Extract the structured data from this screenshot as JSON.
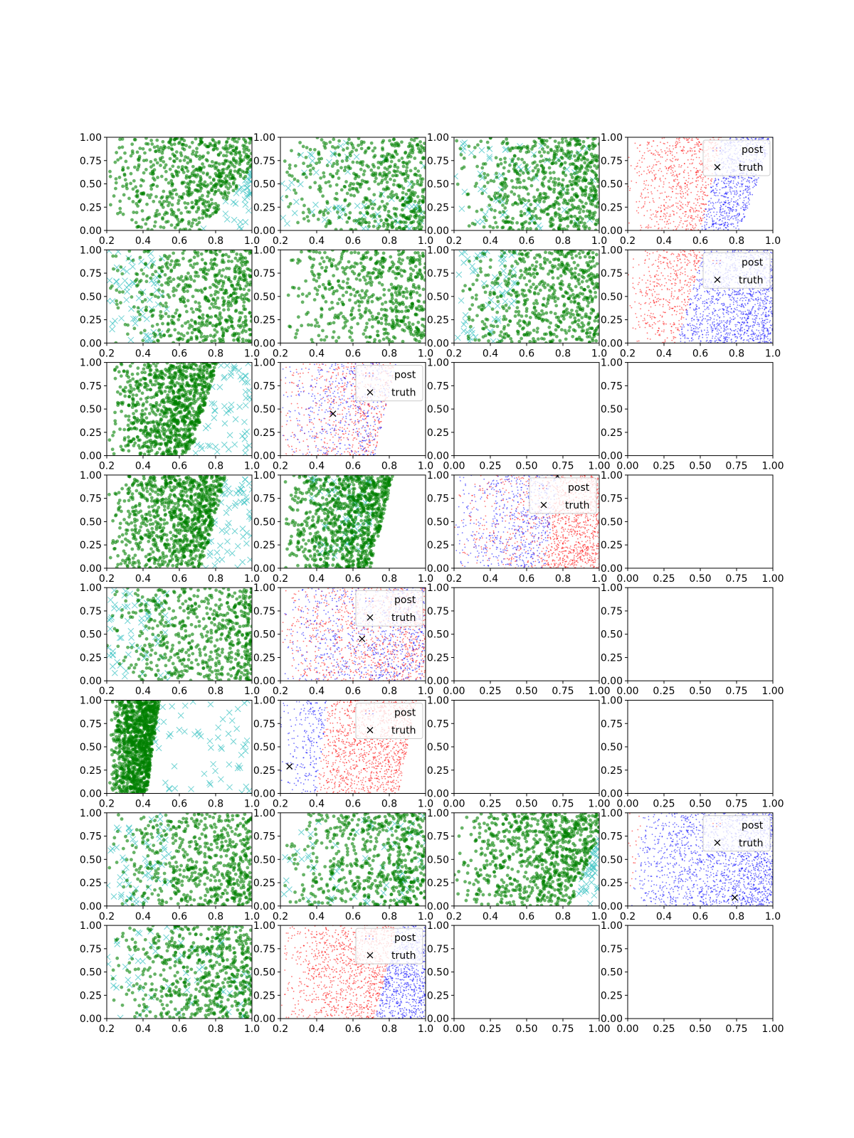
{
  "figure": {
    "rows": 8,
    "cols": 4,
    "background": "#ffffff"
  },
  "colors": {
    "green_points": "#008000",
    "cyan_truth": "#40c4c4",
    "post_red": "#ff0000",
    "post_blue": "#0000ff",
    "truth_marker": "#000000"
  },
  "legend": {
    "post_label": "post",
    "truth_label": "truth"
  },
  "ticks": {
    "x_range_02": [
      "0.2",
      "0.4",
      "0.6",
      "0.8",
      "1.0"
    ],
    "x_range_0": [
      "0.00",
      "0.25",
      "0.50",
      "0.75",
      "1.00"
    ],
    "y_range_0": [
      "0.00",
      "0.25",
      "0.50",
      "0.75",
      "1.00"
    ]
  },
  "chart_data": [
    {
      "row": 0,
      "col": 0,
      "type": "scatter",
      "kind": "samples",
      "xlim": [
        0.2,
        1.0
      ],
      "ylim": [
        0,
        1
      ],
      "xticks": [
        "0.2",
        "0.4",
        "0.6",
        "0.8",
        "1.0"
      ],
      "yticks": [
        "0.00",
        "0.25",
        "0.50",
        "0.75",
        "1.00"
      ],
      "boundary": {
        "x_at_y0": 0.72,
        "x_at_y1": 1.15
      },
      "truth_side": "right",
      "density": 0.6
    },
    {
      "row": 0,
      "col": 1,
      "type": "scatter",
      "kind": "samples",
      "xlim": [
        0.2,
        1.0
      ],
      "ylim": [
        0,
        1
      ],
      "xticks": [
        "0.2",
        "0.4",
        "0.6",
        "0.8",
        "1.0"
      ],
      "yticks": [
        "0.00",
        "0.25",
        "0.50",
        "0.75",
        "1.00"
      ],
      "boundary": {
        "x_at_y0": 1.5,
        "x_at_y1": 1.5
      },
      "truth_side": "mixed",
      "density": 0.5
    },
    {
      "row": 0,
      "col": 2,
      "type": "scatter",
      "kind": "samples",
      "xlim": [
        0.2,
        1.0
      ],
      "ylim": [
        0,
        1
      ],
      "xticks": [
        "0.2",
        "0.4",
        "0.6",
        "0.8",
        "1.0"
      ],
      "yticks": [
        "0.00",
        "0.25",
        "0.50",
        "0.75",
        "1.00"
      ],
      "boundary": {
        "x_at_y0": 1.0,
        "x_at_y1": 1.4
      },
      "truth_side": "mixed",
      "density": 0.6
    },
    {
      "row": 0,
      "col": 3,
      "type": "scatter",
      "kind": "posterior",
      "xlim": [
        0.2,
        1.0
      ],
      "ylim": [
        0,
        1
      ],
      "xticks": [
        "0.2",
        "0.4",
        "0.6",
        "0.8",
        "1.0"
      ],
      "yticks": [
        "0.00",
        "0.25",
        "0.50",
        "0.75",
        "1.00"
      ],
      "boundary": {
        "x_at_y0": 0.6,
        "x_at_y1": 0.72
      },
      "red_side": "left",
      "blue_cut": {
        "x_at_y0": 0.82,
        "x_at_y1": 1.0
      },
      "truth": null,
      "legend": "upper right"
    },
    {
      "row": 1,
      "col": 0,
      "type": "scatter",
      "kind": "samples",
      "xlim": [
        0.2,
        1.0
      ],
      "ylim": [
        0,
        1
      ],
      "xticks": [
        "0.2",
        "0.4",
        "0.6",
        "0.8",
        "1.0"
      ],
      "yticks": [
        "0.00",
        "0.25",
        "0.50",
        "0.75",
        "1.00"
      ],
      "boundary": {
        "x_at_y0": 1.5,
        "x_at_y1": 1.5
      },
      "truth_side": "left",
      "density": 0.55
    },
    {
      "row": 1,
      "col": 1,
      "type": "scatter",
      "kind": "samples",
      "xlim": [
        0.2,
        1.0
      ],
      "ylim": [
        0,
        1
      ],
      "xticks": [
        "0.2",
        "0.4",
        "0.6",
        "0.8",
        "1.0"
      ],
      "yticks": [
        "0.00",
        "0.25",
        "0.50",
        "0.75",
        "1.00"
      ],
      "boundary": {
        "x_at_y0": 1.5,
        "x_at_y1": 1.5
      },
      "truth_side": "right",
      "density": 0.5
    },
    {
      "row": 1,
      "col": 2,
      "type": "scatter",
      "kind": "samples",
      "xlim": [
        0.2,
        1.0
      ],
      "ylim": [
        0,
        1
      ],
      "xticks": [
        "0.2",
        "0.4",
        "0.6",
        "0.8",
        "1.0"
      ],
      "yticks": [
        "0.00",
        "0.25",
        "0.50",
        "0.75",
        "1.00"
      ],
      "boundary": {
        "x_at_y0": 1.5,
        "x_at_y1": 1.5
      },
      "truth_side": "left",
      "density": 0.55
    },
    {
      "row": 1,
      "col": 3,
      "type": "scatter",
      "kind": "posterior",
      "xlim": [
        0.2,
        1.0
      ],
      "ylim": [
        0,
        1
      ],
      "xticks": [
        "0.2",
        "0.4",
        "0.6",
        "0.8",
        "1.0"
      ],
      "yticks": [
        "0.00",
        "0.25",
        "0.50",
        "0.75",
        "1.00"
      ],
      "boundary": {
        "x_at_y0": 0.47,
        "x_at_y1": 0.62
      },
      "red_side": "left",
      "blue_cut": null,
      "truth": null,
      "legend": "upper right"
    },
    {
      "row": 2,
      "col": 0,
      "type": "scatter",
      "kind": "samples",
      "xlim": [
        0.2,
        1.0
      ],
      "ylim": [
        0,
        1
      ],
      "xticks": [
        "0.2",
        "0.4",
        "0.6",
        "0.8",
        "1.0"
      ],
      "yticks": [
        "0.00",
        "0.25",
        "0.50",
        "0.75",
        "1.00"
      ],
      "boundary": {
        "x_at_y0": 0.66,
        "x_at_y1": 0.81
      },
      "truth_side": "right",
      "density": 0.85
    },
    {
      "row": 2,
      "col": 1,
      "type": "scatter",
      "kind": "posterior",
      "xlim": [
        0.2,
        1.0
      ],
      "ylim": [
        0,
        1
      ],
      "xticks": [
        "0.2",
        "0.4",
        "0.6",
        "0.8",
        "1.0"
      ],
      "yticks": [
        "0.00",
        "0.25",
        "0.50",
        "0.75",
        "1.00"
      ],
      "boundary": {
        "x_at_y0": 0.72,
        "x_at_y1": 0.84
      },
      "red_side": "mixed",
      "blue_cut": null,
      "truth": [
        0.49,
        0.45
      ],
      "legend": "upper right"
    },
    {
      "row": 2,
      "col": 2,
      "type": "empty",
      "xlim": [
        0,
        1
      ],
      "ylim": [
        0,
        1
      ],
      "xticks": [
        "0.00",
        "0.25",
        "0.50",
        "0.75",
        "1.00"
      ],
      "yticks": [
        "0.00",
        "0.25",
        "0.50",
        "0.75",
        "1.00"
      ]
    },
    {
      "row": 2,
      "col": 3,
      "type": "empty",
      "xlim": [
        0,
        1
      ],
      "ylim": [
        0,
        1
      ],
      "xticks": [
        "0.00",
        "0.25",
        "0.50",
        "0.75",
        "1.00"
      ],
      "yticks": [
        "0.00",
        "0.25",
        "0.50",
        "0.75",
        "1.00"
      ]
    },
    {
      "row": 3,
      "col": 0,
      "type": "scatter",
      "kind": "samples",
      "xlim": [
        0.2,
        1.0
      ],
      "ylim": [
        0,
        1
      ],
      "xticks": [
        "0.2",
        "0.4",
        "0.6",
        "0.8",
        "1.0"
      ],
      "yticks": [
        "0.00",
        "0.25",
        "0.50",
        "0.75",
        "1.00"
      ],
      "boundary": {
        "x_at_y0": 0.72,
        "x_at_y1": 0.86
      },
      "truth_side": "right",
      "density": 0.85
    },
    {
      "row": 3,
      "col": 1,
      "type": "scatter",
      "kind": "samples",
      "xlim": [
        0.2,
        1.0
      ],
      "ylim": [
        0,
        1
      ],
      "xticks": [
        "0.2",
        "0.4",
        "0.6",
        "0.8",
        "1.0"
      ],
      "yticks": [
        "0.00",
        "0.25",
        "0.50",
        "0.75",
        "1.00"
      ],
      "boundary": {
        "x_at_y0": 0.7,
        "x_at_y1": 0.82
      },
      "truth_side": "inside",
      "density": 0.85
    },
    {
      "row": 3,
      "col": 2,
      "type": "scatter",
      "kind": "posterior",
      "xlim": [
        0.2,
        1.0
      ],
      "ylim": [
        0,
        1
      ],
      "xticks": [
        "0.2",
        "0.4",
        "0.6",
        "0.8",
        "1.0"
      ],
      "yticks": [
        "0.00",
        "0.25",
        "0.50",
        "0.75",
        "1.00"
      ],
      "boundary": {
        "x_at_y0": 0.7,
        "x_at_y1": 0.78
      },
      "red_side": "right",
      "blue_cut": null,
      "truth": [
        0.77,
        0.99
      ],
      "legend": "upper right"
    },
    {
      "row": 3,
      "col": 3,
      "type": "empty",
      "xlim": [
        0,
        1
      ],
      "ylim": [
        0,
        1
      ],
      "xticks": [
        "0.00",
        "0.25",
        "0.50",
        "0.75",
        "1.00"
      ],
      "yticks": [
        "0.00",
        "0.25",
        "0.50",
        "0.75",
        "1.00"
      ]
    },
    {
      "row": 4,
      "col": 0,
      "type": "scatter",
      "kind": "samples",
      "xlim": [
        0.2,
        1.0
      ],
      "ylim": [
        0,
        1
      ],
      "xticks": [
        "0.2",
        "0.4",
        "0.6",
        "0.8",
        "1.0"
      ],
      "yticks": [
        "0.00",
        "0.25",
        "0.50",
        "0.75",
        "1.00"
      ],
      "boundary": {
        "x_at_y0": 1.5,
        "x_at_y1": 1.5
      },
      "truth_side": "left",
      "density": 0.55
    },
    {
      "row": 4,
      "col": 1,
      "type": "scatter",
      "kind": "posterior",
      "xlim": [
        0.2,
        1.0
      ],
      "ylim": [
        0,
        1
      ],
      "xticks": [
        "0.2",
        "0.4",
        "0.6",
        "0.8",
        "1.0"
      ],
      "yticks": [
        "0.00",
        "0.25",
        "0.50",
        "0.75",
        "1.00"
      ],
      "boundary": {
        "x_at_y0": 1.5,
        "x_at_y1": 1.5
      },
      "red_side": "mixed",
      "blue_cut": null,
      "truth": [
        0.65,
        0.45
      ],
      "legend": "upper right"
    },
    {
      "row": 4,
      "col": 2,
      "type": "empty",
      "xlim": [
        0,
        1
      ],
      "ylim": [
        0,
        1
      ],
      "xticks": [
        "0.00",
        "0.25",
        "0.50",
        "0.75",
        "1.00"
      ],
      "yticks": [
        "0.00",
        "0.25",
        "0.50",
        "0.75",
        "1.00"
      ]
    },
    {
      "row": 4,
      "col": 3,
      "type": "empty",
      "xlim": [
        0,
        1
      ],
      "ylim": [
        0,
        1
      ],
      "xticks": [
        "0.00",
        "0.25",
        "0.50",
        "0.75",
        "1.00"
      ],
      "yticks": [
        "0.00",
        "0.25",
        "0.50",
        "0.75",
        "1.00"
      ]
    },
    {
      "row": 5,
      "col": 0,
      "type": "scatter",
      "kind": "samples",
      "xlim": [
        0.2,
        1.0
      ],
      "ylim": [
        0,
        1
      ],
      "xticks": [
        "0.2",
        "0.4",
        "0.6",
        "0.8",
        "1.0"
      ],
      "yticks": [
        "0.00",
        "0.25",
        "0.50",
        "0.75",
        "1.00"
      ],
      "boundary": {
        "x_at_y0": 0.42,
        "x_at_y1": 0.49
      },
      "truth_side": "right",
      "density": 1.0
    },
    {
      "row": 5,
      "col": 1,
      "type": "scatter",
      "kind": "posterior",
      "xlim": [
        0.2,
        1.0
      ],
      "ylim": [
        0,
        1
      ],
      "xticks": [
        "0.2",
        "0.4",
        "0.6",
        "0.8",
        "1.0"
      ],
      "yticks": [
        "0.00",
        "0.25",
        "0.50",
        "0.75",
        "1.00"
      ],
      "boundary": {
        "x_at_y0": 0.85,
        "x_at_y1": 0.95
      },
      "red_side": "right",
      "blue_split": {
        "x_at_y0": 0.4,
        "x_at_y1": 0.46
      },
      "truth": [
        0.25,
        0.29
      ],
      "legend": "upper right"
    },
    {
      "row": 5,
      "col": 2,
      "type": "empty",
      "xlim": [
        0,
        1
      ],
      "ylim": [
        0,
        1
      ],
      "xticks": [
        "0.00",
        "0.25",
        "0.50",
        "0.75",
        "1.00"
      ],
      "yticks": [
        "0.00",
        "0.25",
        "0.50",
        "0.75",
        "1.00"
      ]
    },
    {
      "row": 5,
      "col": 3,
      "type": "empty",
      "xlim": [
        0,
        1
      ],
      "ylim": [
        0,
        1
      ],
      "xticks": [
        "0.00",
        "0.25",
        "0.50",
        "0.75",
        "1.00"
      ],
      "yticks": [
        "0.00",
        "0.25",
        "0.50",
        "0.75",
        "1.00"
      ]
    },
    {
      "row": 6,
      "col": 0,
      "type": "scatter",
      "kind": "samples",
      "xlim": [
        0.2,
        1.0
      ],
      "ylim": [
        0,
        1
      ],
      "xticks": [
        "0.2",
        "0.4",
        "0.6",
        "0.8",
        "1.0"
      ],
      "yticks": [
        "0.00",
        "0.25",
        "0.50",
        "0.75",
        "1.00"
      ],
      "boundary": {
        "x_at_y0": 1.5,
        "x_at_y1": 1.5
      },
      "truth_side": "left",
      "density": 0.55
    },
    {
      "row": 6,
      "col": 1,
      "type": "scatter",
      "kind": "samples",
      "xlim": [
        0.2,
        1.0
      ],
      "ylim": [
        0,
        1
      ],
      "xticks": [
        "0.2",
        "0.4",
        "0.6",
        "0.8",
        "1.0"
      ],
      "yticks": [
        "0.00",
        "0.25",
        "0.50",
        "0.75",
        "1.00"
      ],
      "boundary": {
        "x_at_y0": 1.5,
        "x_at_y1": 1.5
      },
      "truth_side": "mixed",
      "density": 0.55
    },
    {
      "row": 6,
      "col": 2,
      "type": "scatter",
      "kind": "samples",
      "xlim": [
        0.2,
        1.0
      ],
      "ylim": [
        0,
        1
      ],
      "xticks": [
        "0.2",
        "0.4",
        "0.6",
        "0.8",
        "1.0"
      ],
      "yticks": [
        "0.00",
        "0.25",
        "0.50",
        "0.75",
        "1.00"
      ],
      "boundary": {
        "x_at_y0": 0.84,
        "x_at_y1": 1.05
      },
      "truth_side": "right",
      "density": 0.75
    },
    {
      "row": 6,
      "col": 3,
      "type": "scatter",
      "kind": "posterior",
      "xlim": [
        0.2,
        1.0
      ],
      "ylim": [
        0,
        1
      ],
      "xticks": [
        "0.2",
        "0.4",
        "0.6",
        "0.8",
        "1.0"
      ],
      "yticks": [
        "0.00",
        "0.25",
        "0.50",
        "0.75",
        "1.00"
      ],
      "boundary": {
        "x_at_y0": 0.21,
        "x_at_y1": 0.28
      },
      "red_side": "left",
      "blue_cut": null,
      "truth": [
        0.79,
        0.09
      ],
      "legend": "upper right"
    },
    {
      "row": 7,
      "col": 0,
      "type": "scatter",
      "kind": "samples",
      "xlim": [
        0.2,
        1.0
      ],
      "ylim": [
        0,
        1
      ],
      "xticks": [
        "0.2",
        "0.4",
        "0.6",
        "0.8",
        "1.0"
      ],
      "yticks": [
        "0.00",
        "0.25",
        "0.50",
        "0.75",
        "1.00"
      ],
      "boundary": {
        "x_at_y0": 1.5,
        "x_at_y1": 1.5
      },
      "truth_side": "mixed",
      "density": 0.55
    },
    {
      "row": 7,
      "col": 1,
      "type": "scatter",
      "kind": "posterior",
      "xlim": [
        0.2,
        1.0
      ],
      "ylim": [
        0,
        1
      ],
      "xticks": [
        "0.2",
        "0.4",
        "0.6",
        "0.8",
        "1.0"
      ],
      "yticks": [
        "0.00",
        "0.25",
        "0.50",
        "0.75",
        "1.00"
      ],
      "boundary": {
        "x_at_y0": 0.72,
        "x_at_y1": 0.84
      },
      "red_side": "left",
      "blue_cut": null,
      "truth": null,
      "legend": "upper right"
    },
    {
      "row": 7,
      "col": 2,
      "type": "empty",
      "xlim": [
        0,
        1
      ],
      "ylim": [
        0,
        1
      ],
      "xticks": [
        "0.00",
        "0.25",
        "0.50",
        "0.75",
        "1.00"
      ],
      "yticks": [
        "0.00",
        "0.25",
        "0.50",
        "0.75",
        "1.00"
      ]
    },
    {
      "row": 7,
      "col": 3,
      "type": "empty",
      "xlim": [
        0,
        1
      ],
      "ylim": [
        0,
        1
      ],
      "xticks": [
        "0.00",
        "0.25",
        "0.50",
        "0.75",
        "1.00"
      ],
      "yticks": [
        "0.00",
        "0.25",
        "0.50",
        "0.75",
        "1.00"
      ]
    }
  ]
}
